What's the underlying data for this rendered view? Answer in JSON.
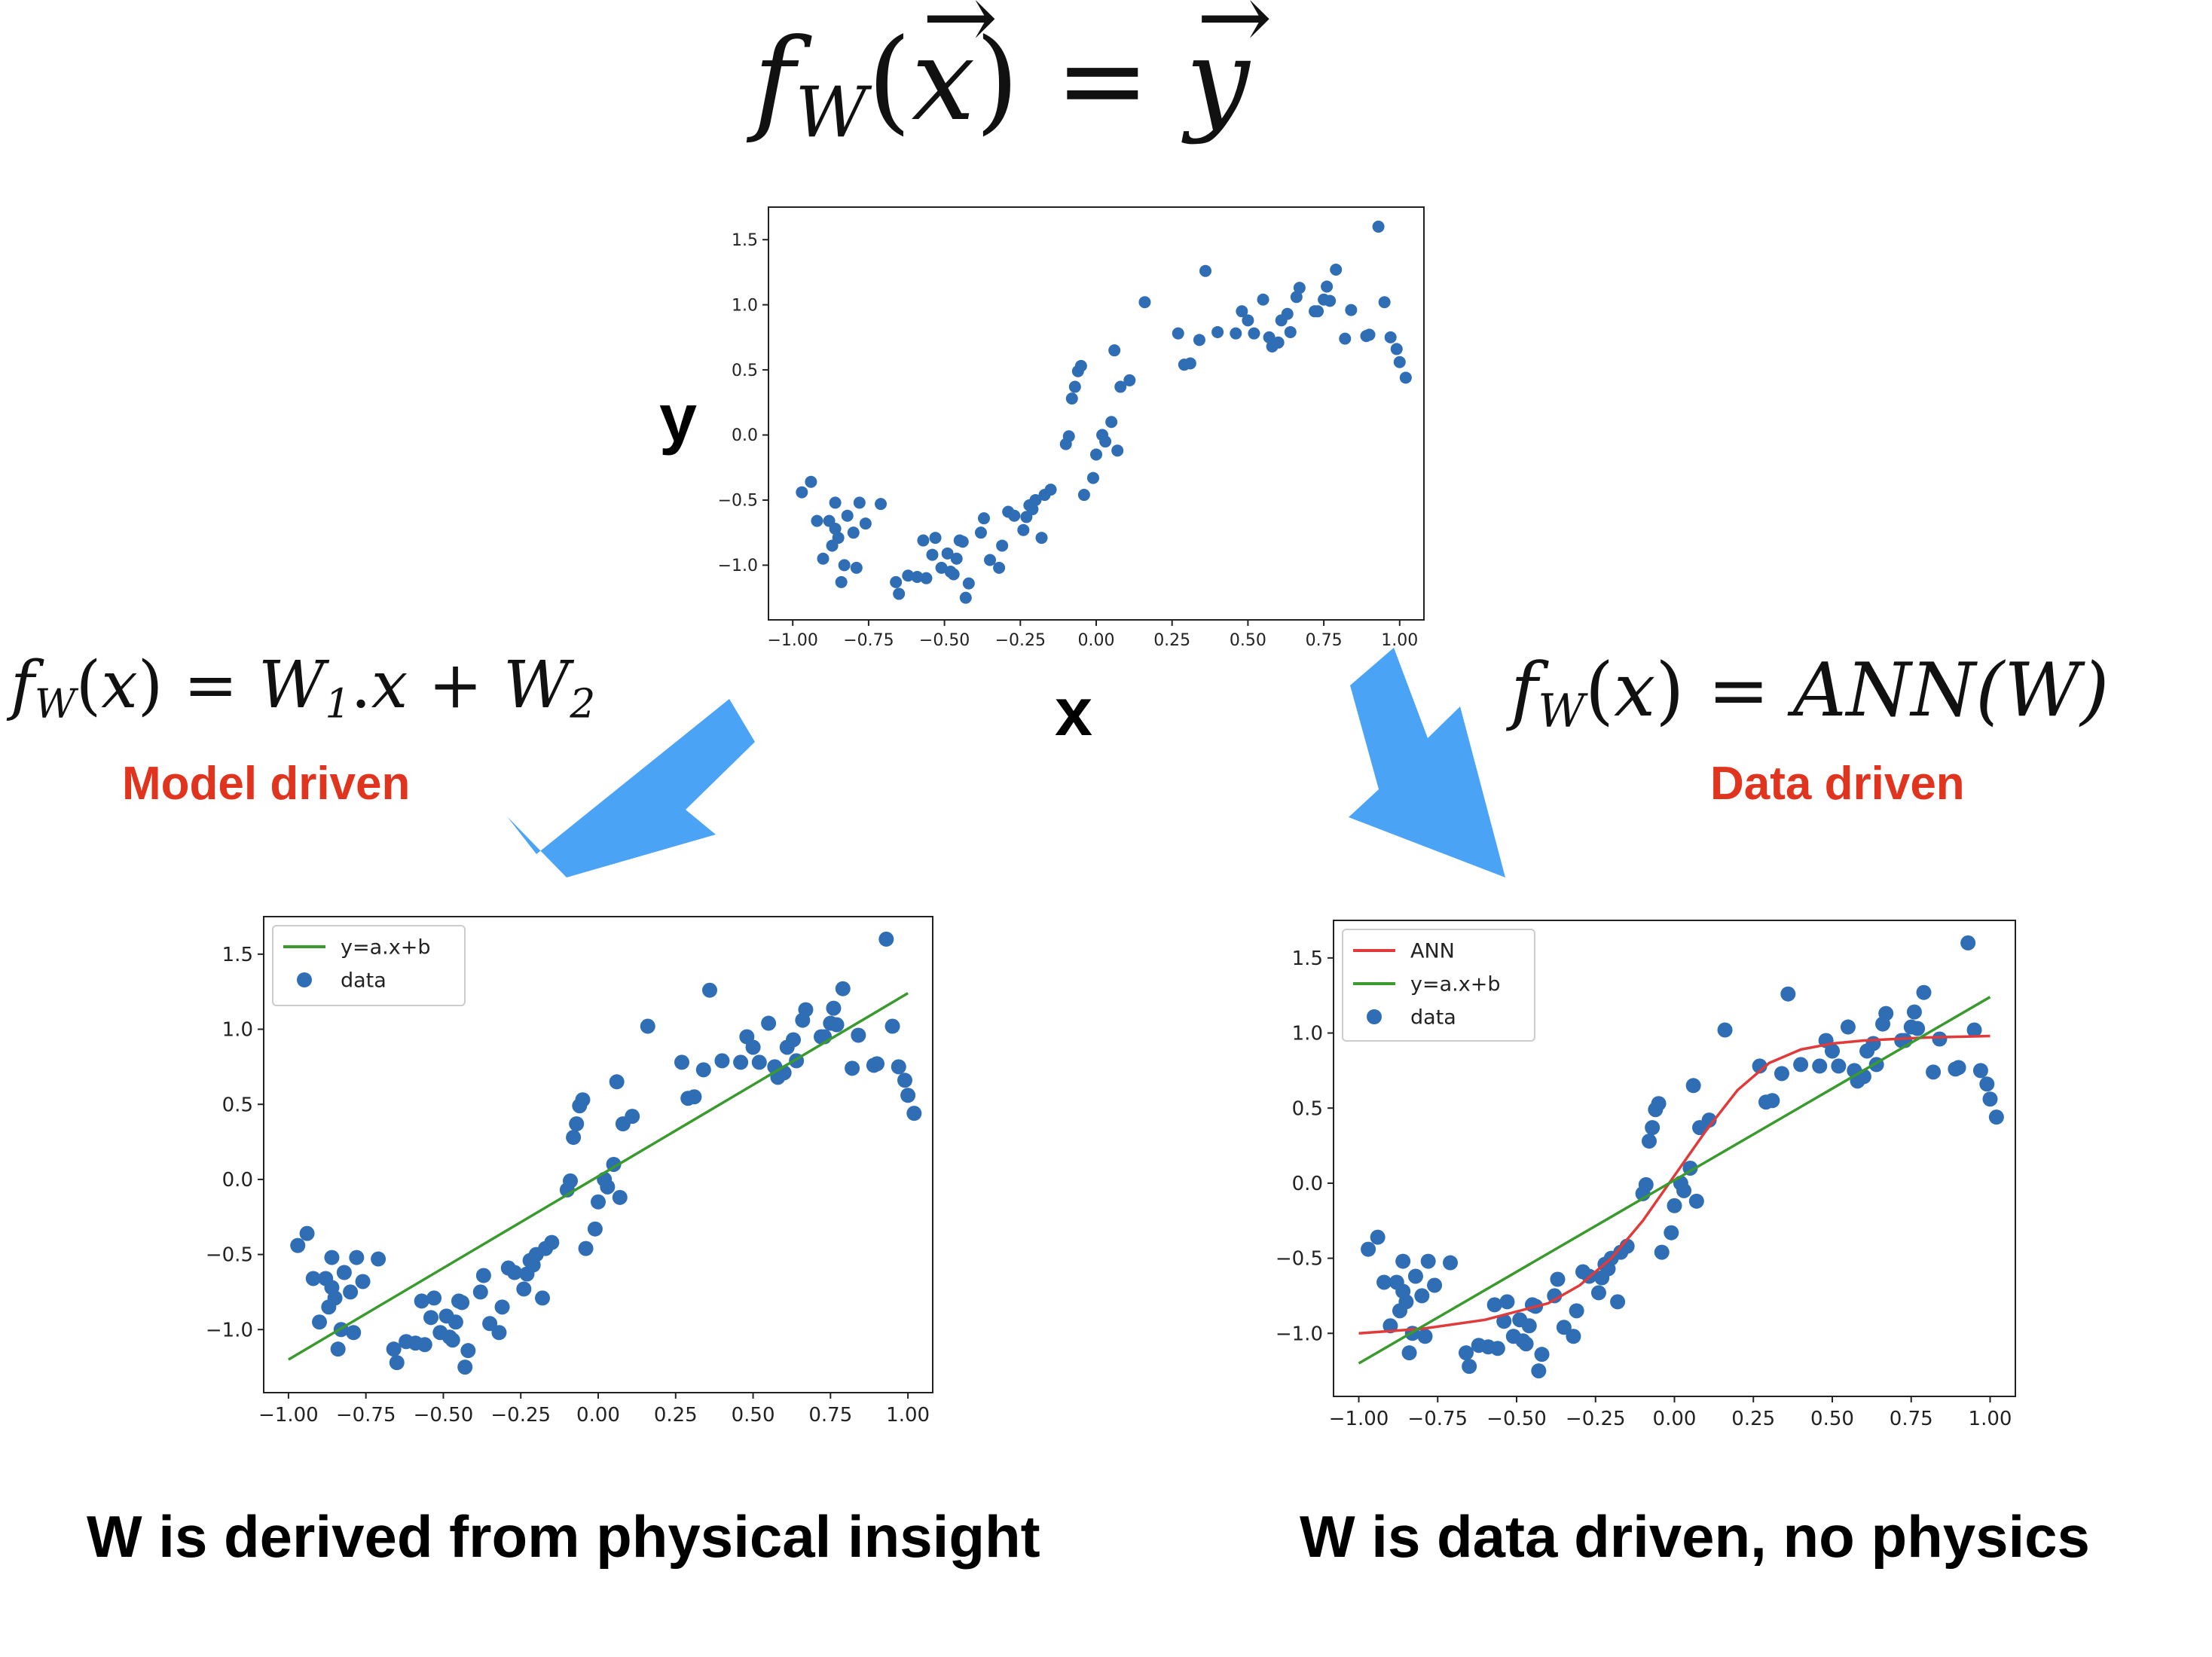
{
  "equations": {
    "top": {
      "f": "f",
      "sub": "W",
      "x": "x",
      "eq": "=",
      "y": "y"
    },
    "left": {
      "f": "f",
      "sub": "W",
      "x": "x",
      "rhs": "W",
      "rhs_sub1": "1",
      "dot": ".",
      "rhs_x": "x",
      "plus": "+",
      "rhs_w2": "W",
      "rhs_sub2": "2"
    },
    "right": {
      "f": "f",
      "sub": "W",
      "x": "x",
      "rhs": "ANN(W)"
    }
  },
  "labels": {
    "y_axis": "y",
    "x_axis": "x",
    "model_driven": "Model driven",
    "data_driven": "Data driven",
    "caption_left": "W is derived from physical insight",
    "caption_right": "W is data driven, no physics"
  },
  "colors": {
    "arrow": "#4aa3f5",
    "points": "#2f6db5",
    "linear_fit": "#3a9a2e",
    "ann_fit": "#e03a3a",
    "label_red": "#e0341f"
  },
  "chart_data": [
    {
      "type": "scatter",
      "title": "",
      "xlabel": "x",
      "ylabel": "y",
      "xlim": [
        -1.08,
        1.08
      ],
      "ylim": [
        -1.42,
        1.75
      ],
      "xticks": [
        "-1.00",
        "-0.75",
        "-0.50",
        "-0.25",
        "0.00",
        "0.25",
        "0.50",
        "0.75",
        "1.00"
      ],
      "yticks": [
        "-1.0",
        "-0.5",
        "0.0",
        "0.5",
        "1.0",
        "1.5"
      ],
      "legend": null,
      "series": [
        {
          "kind": "scatter",
          "ref": "dataset"
        }
      ]
    },
    {
      "type": "scatter",
      "title": "",
      "xlim": [
        -1.08,
        1.08
      ],
      "ylim": [
        -1.42,
        1.75
      ],
      "xticks": [
        "-1.00",
        "-0.75",
        "-0.50",
        "-0.25",
        "0.00",
        "0.25",
        "0.50",
        "0.75",
        "1.00"
      ],
      "yticks": [
        "-1.0",
        "-0.5",
        "0.0",
        "0.5",
        "1.0",
        "1.5"
      ],
      "legend": "top-left",
      "series": [
        {
          "name": "y=a.x+b",
          "kind": "line",
          "x": [
            -1.0,
            1.0
          ],
          "y": [
            -1.2,
            1.24
          ]
        },
        {
          "name": "data",
          "kind": "scatter",
          "ref": "dataset"
        }
      ]
    },
    {
      "type": "scatter",
      "title": "",
      "xlim": [
        -1.08,
        1.08
      ],
      "ylim": [
        -1.42,
        1.75
      ],
      "xticks": [
        "-1.00",
        "-0.75",
        "-0.50",
        "-0.25",
        "0.00",
        "0.25",
        "0.50",
        "0.75",
        "1.00"
      ],
      "yticks": [
        "-1.0",
        "-0.5",
        "0.0",
        "0.5",
        "1.0",
        "1.5"
      ],
      "legend": "top-left",
      "series": [
        {
          "name": "ANN",
          "kind": "line",
          "x": [
            -1.0,
            -0.8,
            -0.6,
            -0.4,
            -0.3,
            -0.2,
            -0.1,
            0.0,
            0.1,
            0.2,
            0.3,
            0.4,
            0.5,
            0.6,
            0.8,
            1.0
          ],
          "y": [
            -1.0,
            -0.97,
            -0.91,
            -0.8,
            -0.68,
            -0.5,
            -0.25,
            0.05,
            0.35,
            0.62,
            0.8,
            0.89,
            0.93,
            0.95,
            0.97,
            0.98
          ]
        },
        {
          "name": "y=a.x+b",
          "kind": "line",
          "x": [
            -1.0,
            1.0
          ],
          "y": [
            -1.2,
            1.24
          ]
        },
        {
          "name": "data",
          "kind": "scatter",
          "ref": "dataset"
        }
      ]
    }
  ],
  "dataset": {
    "x": [
      -0.97,
      -0.94,
      -0.92,
      -0.9,
      -0.88,
      -0.87,
      -0.86,
      -0.86,
      -0.85,
      -0.84,
      -0.83,
      -0.82,
      -0.8,
      -0.79,
      -0.78,
      -0.76,
      -0.71,
      -0.66,
      -0.65,
      -0.62,
      -0.59,
      -0.57,
      -0.56,
      -0.54,
      -0.53,
      -0.51,
      -0.49,
      -0.48,
      -0.47,
      -0.46,
      -0.45,
      -0.44,
      -0.43,
      -0.42,
      -0.38,
      -0.37,
      -0.35,
      -0.32,
      -0.31,
      -0.29,
      -0.27,
      -0.24,
      -0.23,
      -0.22,
      -0.21,
      -0.2,
      -0.18,
      -0.17,
      -0.15,
      -0.1,
      -0.09,
      -0.08,
      -0.07,
      -0.06,
      -0.05,
      -0.04,
      -0.01,
      0.0,
      0.02,
      0.03,
      0.05,
      0.06,
      0.07,
      0.08,
      0.11,
      0.16,
      0.27,
      0.29,
      0.31,
      0.34,
      0.36,
      0.4,
      0.46,
      0.48,
      0.5,
      0.52,
      0.55,
      0.57,
      0.58,
      0.6,
      0.61,
      0.63,
      0.64,
      0.66,
      0.67,
      0.72,
      0.73,
      0.75,
      0.76,
      0.77,
      0.79,
      0.82,
      0.84,
      0.89,
      0.9,
      0.93,
      0.95,
      0.97,
      0.99,
      1.0,
      1.02
    ],
    "y": [
      -0.44,
      -0.36,
      -0.66,
      -0.95,
      -0.66,
      -0.85,
      -0.72,
      -0.52,
      -0.79,
      -1.13,
      -1.0,
      -0.62,
      -0.75,
      -1.02,
      -0.52,
      -0.68,
      -0.53,
      -1.13,
      -1.22,
      -1.08,
      -1.09,
      -0.81,
      -1.1,
      -0.92,
      -0.79,
      -1.02,
      -0.91,
      -1.05,
      -1.07,
      -0.95,
      -0.81,
      -0.82,
      -1.25,
      -1.14,
      -0.75,
      -0.64,
      -0.96,
      -1.02,
      -0.85,
      -0.59,
      -0.62,
      -0.73,
      -0.63,
      -0.54,
      -0.57,
      -0.5,
      -0.79,
      -0.46,
      -0.42,
      -0.07,
      -0.01,
      0.28,
      0.37,
      0.49,
      0.53,
      -0.46,
      -0.33,
      -0.15,
      0.0,
      -0.05,
      0.1,
      0.65,
      -0.12,
      0.37,
      0.42,
      1.02,
      0.78,
      0.54,
      0.55,
      0.73,
      1.26,
      0.79,
      0.78,
      0.95,
      0.88,
      0.78,
      1.04,
      0.75,
      0.68,
      0.71,
      0.88,
      0.93,
      0.79,
      1.06,
      1.13,
      0.95,
      0.95,
      1.04,
      1.14,
      1.03,
      1.27,
      0.74,
      0.96,
      0.76,
      0.77,
      1.6,
      1.02,
      0.75,
      0.66,
      0.56,
      0.44
    ]
  }
}
